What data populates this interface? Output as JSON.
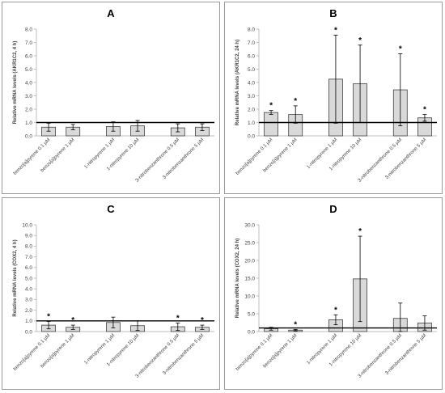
{
  "chart_data": [
    {
      "type": "bar",
      "panel": "A",
      "ylabel": "Relative mRNA levels (AKR1C2, 4 h)",
      "ylim": [
        0,
        8
      ],
      "yticks": [
        "0.0",
        "1.0",
        "2.0",
        "3.0",
        "4.0",
        "5.0",
        "6.0",
        "7.0",
        "8.0"
      ],
      "baseline": 1,
      "categories": [
        "benzo[a]pyrene 0.1 µM",
        "benzo[a]pyrene 1 µM",
        "1-nitropyrene 1 µM",
        "1-nitropyrene 10 µM",
        "3-nitrobenzanthrone 0.5 µM",
        "3-nitrobenzanthrone 5 µM"
      ],
      "values": [
        0.65,
        0.65,
        0.7,
        0.75,
        0.6,
        0.65
      ],
      "errors": [
        0.3,
        0.2,
        0.35,
        0.4,
        0.3,
        0.25
      ],
      "significant": [
        false,
        false,
        false,
        false,
        false,
        false
      ]
    },
    {
      "type": "bar",
      "panel": "B",
      "ylabel": "Relative mRNA levels (AKR1C2, 24 h)",
      "ylim": [
        0,
        8
      ],
      "yticks": [
        "0.0",
        "1.0",
        "2.0",
        "3.0",
        "4.0",
        "5.0",
        "6.0",
        "7.0",
        "8.0"
      ],
      "baseline": 1,
      "categories": [
        "benzo[a]pyrene 0.1 µM",
        "benzo[a]pyrene 1 µM",
        "1-nitropyrene 1 µM",
        "1-nitropyrene 10 µM",
        "3-nitrobenzanthrone 0.5 µM",
        "3-nitrobenzanthrone 5 µM"
      ],
      "values": [
        1.75,
        1.6,
        4.25,
        3.9,
        3.45,
        1.35
      ],
      "errors": [
        0.15,
        0.65,
        3.3,
        2.9,
        2.7,
        0.25
      ],
      "significant": [
        true,
        true,
        true,
        true,
        true,
        true
      ]
    },
    {
      "type": "bar",
      "panel": "C",
      "ylabel": "Relative mRNA levels (COX2, 4 h)",
      "ylim": [
        0,
        10
      ],
      "yticks": [
        "0.0",
        "1.0",
        "2.0",
        "3.0",
        "4.0",
        "5.0",
        "6.0",
        "7.0",
        "8.0",
        "9.0",
        "10.0"
      ],
      "baseline": 1,
      "categories": [
        "benzo[a]pyrene 0.1 µM",
        "benzo[a]pyrene 1 µM",
        "1-nitropyrene 1 µM",
        "1-nitropyrene 10 µM",
        "3-nitrobenzanthrone 0.5 µM",
        "3-nitrobenzanthrone 5 µM"
      ],
      "values": [
        0.6,
        0.4,
        0.85,
        0.55,
        0.45,
        0.4
      ],
      "errors": [
        0.35,
        0.2,
        0.5,
        0.45,
        0.35,
        0.2
      ],
      "significant": [
        true,
        true,
        false,
        false,
        true,
        true
      ]
    },
    {
      "type": "bar",
      "panel": "D",
      "ylabel": "Relative mRNA levels (COX2, 24 h)",
      "ylim": [
        0,
        30
      ],
      "yticks": [
        "0.0",
        "5.0",
        "10.0",
        "15.0",
        "20.0",
        "25.0",
        "30.0"
      ],
      "baseline": 1,
      "categories": [
        "benzo[a]pyrene 0.1 µM",
        "benzo[a]pyrene 1 µM",
        "1-nitropyrene 1 µM",
        "1-nitropyrene 10 µM",
        "3-nitrobenzanthrone 0.5 µM",
        "3-nitrobenzanthrone 5 µM"
      ],
      "values": [
        0.8,
        0.4,
        3.3,
        14.8,
        3.7,
        2.4
      ],
      "errors": [
        0.4,
        0.2,
        1.4,
        12.0,
        4.3,
        2.0
      ],
      "significant": [
        false,
        true,
        true,
        true,
        false,
        false
      ]
    }
  ]
}
